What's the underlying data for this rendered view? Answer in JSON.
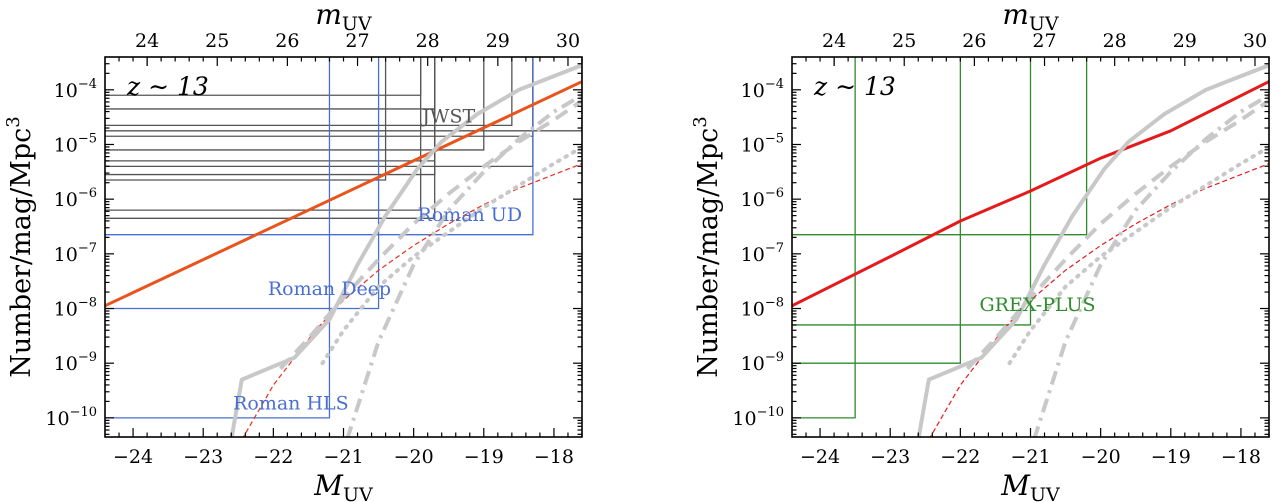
{
  "chart_data": [
    {
      "type": "line",
      "panel": "left",
      "annotation": "z ∼ 13",
      "xlabel_main": "M",
      "xlabel_sub": "UV",
      "ylabel_main": "Number/mag/Mpc",
      "ylabel_sup": "3",
      "top_xlabel_main": "m",
      "top_xlabel_sub": "UV",
      "xlim": [
        -24.4,
        -17.6
      ],
      "ylim_log10": [
        -10.35,
        -3.4
      ],
      "x_ticks": [
        -24,
        -23,
        -22,
        -21,
        -20,
        -19,
        -18
      ],
      "x_tick_labels": [
        "−24",
        "−23",
        "−22",
        "−21",
        "−20",
        "−19",
        "−18"
      ],
      "y_ticks_exp": [
        -10,
        -9,
        -8,
        -7,
        -6,
        -5,
        -4
      ],
      "top_ticks": [
        24,
        25,
        26,
        27,
        28,
        29,
        30
      ],
      "top_tick_offset_mag": 47.8,
      "series": [
        {
          "style": "model-thick",
          "color": "#e8541c",
          "x": [
            -24.4,
            -17.6
          ],
          "y_log10": [
            -7.95,
            -3.85
          ]
        },
        {
          "style": "model-dashed-thin",
          "color": "#e8301c",
          "x": [
            -22.45,
            -22.0,
            -21.4,
            -21.0,
            -20.5,
            -20.0,
            -19.5,
            -19.0,
            -18.5,
            -18.0,
            -17.6
          ],
          "y_log10": [
            -10.4,
            -9.4,
            -8.4,
            -7.85,
            -7.3,
            -6.85,
            -6.45,
            -6.1,
            -5.8,
            -5.55,
            -5.35
          ]
        },
        {
          "style": "obs-solid",
          "color": "#c8c8c8",
          "x": [
            -22.6,
            -22.45,
            -21.7,
            -21.2,
            -20.8,
            -20.4,
            -19.95,
            -19.6,
            -19.1,
            -18.5,
            -18.0,
            -17.6
          ],
          "y_log10": [
            -10.4,
            -9.3,
            -8.9,
            -8.2,
            -7.2,
            -6.3,
            -5.45,
            -4.95,
            -4.45,
            -4.0,
            -3.75,
            -3.55
          ]
        },
        {
          "style": "obs-dashed",
          "color": "#c8c8c8",
          "x": [
            -21.9,
            -21.5,
            -21.0,
            -20.5,
            -20.0,
            -19.5,
            -19.0,
            -18.5,
            -18.0,
            -17.6
          ],
          "y_log10": [
            -9.1,
            -8.55,
            -7.8,
            -7.1,
            -6.45,
            -5.9,
            -5.4,
            -4.95,
            -4.55,
            -4.2
          ]
        },
        {
          "style": "obs-dotted",
          "color": "#c8c8c8",
          "x": [
            -21.3,
            -21.0,
            -20.5,
            -20.0,
            -19.5,
            -19.0,
            -18.5,
            -18.0,
            -17.6
          ],
          "y_log10": [
            -9.0,
            -8.4,
            -7.6,
            -7.05,
            -6.6,
            -6.15,
            -5.75,
            -5.35,
            -5.05
          ]
        },
        {
          "style": "obs-dashdot",
          "color": "#c8c8c8",
          "x": [
            -20.95,
            -20.5,
            -20.0,
            -19.5,
            -19.0,
            -18.5,
            -18.0,
            -17.6
          ],
          "y_log10": [
            -10.4,
            -8.6,
            -7.2,
            -6.2,
            -5.5,
            -4.9,
            -4.4,
            -4.1
          ]
        }
      ],
      "surveys": [
        {
          "label": "JWST",
          "color": "#555555",
          "label_x": -19.5,
          "label_y_log10": -4.6,
          "limits": [
            {
              "M_lim": -19.9,
              "log_density": -4.1
            },
            {
              "M_lim": -19.7,
              "log_density": -4.35
            },
            {
              "M_lim": -18.6,
              "log_density": -4.65
            },
            {
              "M_lim": -17.6,
              "log_density": -4.75
            },
            {
              "M_lim": -18.3,
              "log_density": -4.85
            },
            {
              "M_lim": -19.0,
              "log_density": -5.1
            },
            {
              "M_lim": -19.7,
              "log_density": -5.3
            },
            {
              "M_lim": -18.3,
              "log_density": -5.4
            },
            {
              "M_lim": -19.7,
              "log_density": -5.55
            },
            {
              "M_lim": -20.4,
              "log_density": -5.65
            },
            {
              "M_lim": -19.9,
              "log_density": -6.2
            },
            {
              "M_lim": -19.7,
              "log_density": -6.35
            }
          ]
        },
        {
          "label": "Roman UD",
          "color": "#4a6fd4",
          "label_x": -19.2,
          "label_y_log10": -6.4,
          "limits": [
            {
              "M_lim": -18.3,
              "log_density": -6.65
            }
          ]
        },
        {
          "label": "Roman Deep",
          "color": "#4a6fd4",
          "label_x": -21.2,
          "label_y_log10": -7.75,
          "limits": [
            {
              "M_lim": -20.5,
              "log_density": -8.0
            }
          ]
        },
        {
          "label": "Roman HLS",
          "color": "#4a6fd4",
          "label_x": -21.75,
          "label_y_log10": -9.85,
          "limits": [
            {
              "M_lim": -21.2,
              "log_density": -10.0
            }
          ]
        }
      ]
    },
    {
      "type": "line",
      "panel": "right",
      "annotation": "z ∼ 13",
      "xlabel_main": "M",
      "xlabel_sub": "UV",
      "ylabel_main": "Number/mag/Mpc",
      "ylabel_sup": "3",
      "top_xlabel_main": "m",
      "top_xlabel_sub": "UV",
      "xlim": [
        -24.4,
        -17.6
      ],
      "ylim_log10": [
        -10.35,
        -3.4
      ],
      "x_ticks": [
        -24,
        -23,
        -22,
        -21,
        -20,
        -19,
        -18
      ],
      "x_tick_labels": [
        "−24",
        "−23",
        "−22",
        "−21",
        "−20",
        "−19",
        "−18"
      ],
      "y_ticks_exp": [
        -10,
        -9,
        -8,
        -7,
        -6,
        -5,
        -4
      ],
      "top_ticks": [
        24,
        25,
        26,
        27,
        28,
        29,
        30
      ],
      "top_tick_offset_mag": 47.8,
      "series": [
        {
          "style": "model-thick",
          "color": "#e41a1c",
          "x": [
            -24.4,
            -23.0,
            -22.0,
            -21.0,
            -20.0,
            -19.0,
            -17.6
          ],
          "y_log10": [
            -7.95,
            -7.05,
            -6.4,
            -5.85,
            -5.25,
            -4.75,
            -3.85
          ]
        },
        {
          "style": "model-dashed-thin",
          "color": "#e41a1c",
          "x": [
            -22.45,
            -22.0,
            -21.4,
            -21.0,
            -20.5,
            -20.0,
            -19.5,
            -19.0,
            -18.5,
            -18.0,
            -17.6
          ],
          "y_log10": [
            -10.4,
            -9.4,
            -8.4,
            -7.85,
            -7.3,
            -6.85,
            -6.45,
            -6.1,
            -5.8,
            -5.55,
            -5.35
          ]
        },
        {
          "style": "obs-solid",
          "color": "#c8c8c8",
          "x": [
            -22.6,
            -22.45,
            -21.7,
            -21.2,
            -20.8,
            -20.4,
            -19.95,
            -19.6,
            -19.1,
            -18.5,
            -18.0,
            -17.6
          ],
          "y_log10": [
            -10.4,
            -9.3,
            -8.9,
            -8.2,
            -7.2,
            -6.3,
            -5.45,
            -4.95,
            -4.45,
            -4.0,
            -3.75,
            -3.55
          ]
        },
        {
          "style": "obs-dashed",
          "color": "#c8c8c8",
          "x": [
            -21.9,
            -21.5,
            -21.0,
            -20.5,
            -20.0,
            -19.5,
            -19.0,
            -18.5,
            -18.0,
            -17.6
          ],
          "y_log10": [
            -9.1,
            -8.55,
            -7.8,
            -7.1,
            -6.45,
            -5.9,
            -5.4,
            -4.95,
            -4.55,
            -4.2
          ]
        },
        {
          "style": "obs-dotted",
          "color": "#c8c8c8",
          "x": [
            -21.3,
            -21.0,
            -20.5,
            -20.0,
            -19.5,
            -19.0,
            -18.5,
            -18.0,
            -17.6
          ],
          "y_log10": [
            -9.0,
            -8.4,
            -7.6,
            -7.05,
            -6.6,
            -6.15,
            -5.75,
            -5.35,
            -5.05
          ]
        },
        {
          "style": "obs-dashdot",
          "color": "#c8c8c8",
          "x": [
            -20.95,
            -20.5,
            -20.0,
            -19.5,
            -19.0,
            -18.5,
            -18.0,
            -17.6
          ],
          "y_log10": [
            -10.4,
            -8.6,
            -7.2,
            -6.2,
            -5.5,
            -4.9,
            -4.4,
            -4.1
          ]
        }
      ],
      "surveys": [
        {
          "label": "GREX-PLUS",
          "color": "#2e8b2e",
          "label_x": -20.9,
          "label_y_log10": -8.05,
          "limits": [
            {
              "M_lim": -23.5,
              "log_density": -10.0
            },
            {
              "M_lim": -22.0,
              "log_density": -9.0
            },
            {
              "M_lim": -21.0,
              "log_density": -8.3
            },
            {
              "M_lim": -20.2,
              "log_density": -6.65
            }
          ]
        }
      ]
    }
  ]
}
